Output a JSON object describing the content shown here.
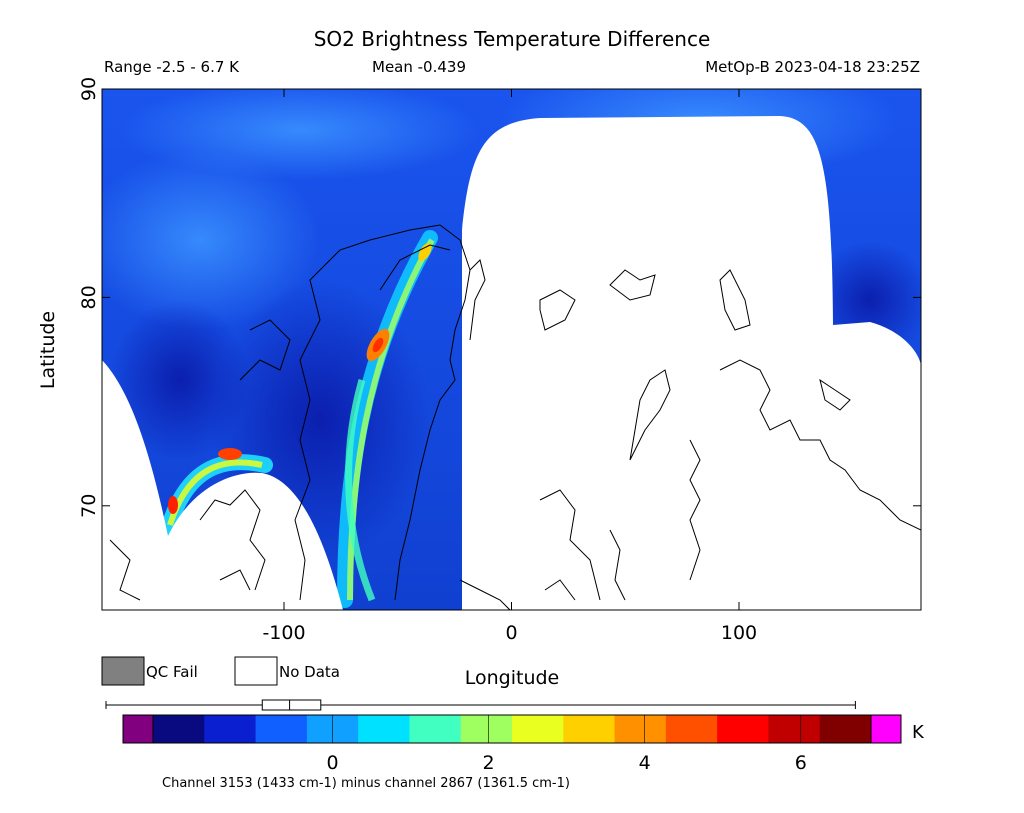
{
  "chart_data": {
    "type": "heatmap",
    "title": "SO2 Brightness Temperature Difference",
    "subtitle_left": "Range -2.5 - 6.7 K",
    "subtitle_center": "Mean -0.439",
    "subtitle_right": "MetOp-B 2023-04-18 23:25Z",
    "xlabel": "Longitude",
    "ylabel": "Latitude",
    "xlim": [
      -180,
      180
    ],
    "ylim": [
      65,
      90
    ],
    "x_ticks": [
      -100,
      0,
      100
    ],
    "y_ticks": [
      70,
      80,
      90
    ],
    "legend": [
      {
        "label": "QC Fail",
        "color": "#808080"
      },
      {
        "label": "No Data",
        "color": "#ffffff"
      }
    ],
    "colorbar": {
      "min": -2.3,
      "max": 6.9,
      "ticks": [
        0,
        2,
        4,
        6
      ],
      "units": "K",
      "low_color": "#800080",
      "high_color": "#ff00ff",
      "colors": [
        "#0a0a80",
        "#0a20d0",
        "#1060ff",
        "#10a0ff",
        "#00e0ff",
        "#40ffc0",
        "#a0ff60",
        "#e8ff20",
        "#ffd000",
        "#ff9000",
        "#ff5000",
        "#ff0000",
        "#c00000",
        "#800000"
      ],
      "boxplot": {
        "whisker_low": -2.5,
        "q1": -0.9,
        "median": -0.55,
        "q3": -0.15,
        "whisker_high": 6.7
      }
    },
    "footnote": "Channel 3153 (1433 cm-1) minus channel 2867 (1361.5 cm-1)",
    "data_regions": [
      {
        "feature": "background",
        "value": -0.6
      },
      {
        "feature": "enhanced band over Greenland / Baffin Bay",
        "lon_range": [
          -75,
          -40
        ],
        "lat_range": [
          66,
          83
        ],
        "peak_value": 6.0
      },
      {
        "feature": "enhanced arc near Alaska / Canada",
        "lon_range": [
          -155,
          -105
        ],
        "lat_range": [
          69,
          72.5
        ],
        "peak_value": 6.2
      }
    ]
  }
}
